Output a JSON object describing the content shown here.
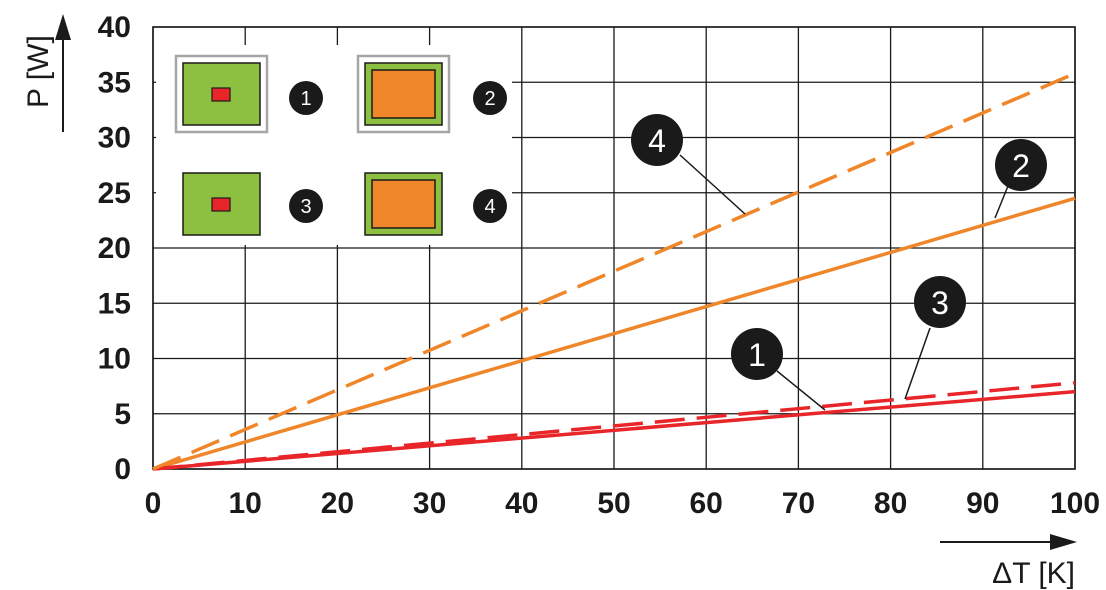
{
  "chart_data": {
    "type": "line",
    "xlabel": "ΔT [K]",
    "ylabel": "P [W]",
    "xlim": [
      0,
      100
    ],
    "ylim": [
      0,
      40
    ],
    "x_ticks": [
      "0",
      "10",
      "20",
      "30",
      "40",
      "50",
      "60",
      "70",
      "80",
      "90",
      "100"
    ],
    "y_ticks": [
      "0",
      "5",
      "10",
      "15",
      "20",
      "25",
      "30",
      "35",
      "40"
    ],
    "grid": true,
    "series": [
      {
        "name": "1",
        "color": "#e8262a",
        "style": "solid",
        "x": [
          0,
          100
        ],
        "y": [
          0,
          7.0
        ]
      },
      {
        "name": "2",
        "color": "#f0862a",
        "style": "solid",
        "x": [
          0,
          100
        ],
        "y": [
          0,
          24.5
        ]
      },
      {
        "name": "3",
        "color": "#e8262a",
        "style": "dashed",
        "x": [
          0,
          100
        ],
        "y": [
          0,
          7.8
        ]
      },
      {
        "name": "4",
        "color": "#f0862a",
        "style": "dashed",
        "x": [
          0,
          100
        ],
        "y": [
          0,
          35.8
        ]
      }
    ],
    "legend": {
      "placement": "top-left",
      "items": [
        {
          "label": "1",
          "icon": "small-red-chip-on-green-board-with-frame"
        },
        {
          "label": "2",
          "icon": "large-orange-chip-on-green-board-with-frame"
        },
        {
          "label": "3",
          "icon": "small-red-chip-on-green-board"
        },
        {
          "label": "4",
          "icon": "large-orange-chip-on-green-board"
        }
      ]
    },
    "callouts": [
      "4",
      "2",
      "3",
      "1"
    ]
  },
  "colors": {
    "board_green": "#8dc040",
    "chip_red": "#e8262a",
    "chip_orange": "#f0862a",
    "frame_gray": "#a6a6a6",
    "badge": "#1a1a1a"
  }
}
